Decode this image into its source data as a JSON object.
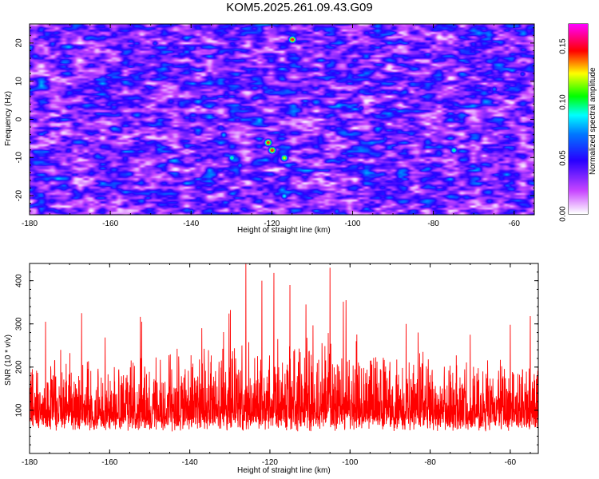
{
  "chart_data": [
    {
      "type": "heatmap",
      "title": "KOM5.2025.261.09.43.G09",
      "xlabel": "Height of straight line (km)",
      "ylabel": "Frequency (Hz)",
      "xlim": [
        -180,
        -55
      ],
      "ylim": [
        -25,
        25
      ],
      "x_ticks": [
        -180,
        -160,
        -140,
        -120,
        -100,
        -80,
        -60
      ],
      "y_ticks": [
        -20,
        -10,
        0,
        10,
        20
      ],
      "colorbar": {
        "label": "Normalized spectral amplitude",
        "range": [
          0.0,
          0.17
        ],
        "ticks": [
          "0.00",
          "0.05",
          "0.10",
          "0.15"
        ],
        "colors": [
          "#ffffff",
          "#cc44ff",
          "#0000ff",
          "#00ffff",
          "#00ff00",
          "#ffff00",
          "#ff0000",
          "#ff00ff"
        ]
      },
      "background_level": 0.02,
      "peaks": [
        {
          "x": -121,
          "y": -6,
          "value": 0.16
        },
        {
          "x": -120,
          "y": -8,
          "value": 0.16
        },
        {
          "x": -117,
          "y": -10,
          "value": 0.13
        },
        {
          "x": -115,
          "y": 21,
          "value": 0.16
        },
        {
          "x": -117,
          "y": -20,
          "value": 0.09
        },
        {
          "x": -130,
          "y": -10,
          "value": 0.1
        },
        {
          "x": -128,
          "y": -12,
          "value": 0.07
        },
        {
          "x": -132,
          "y": -4,
          "value": 0.08
        },
        {
          "x": -75,
          "y": -8,
          "value": 0.1
        },
        {
          "x": -149,
          "y": 20,
          "value": 0.06
        },
        {
          "x": -104,
          "y": -24,
          "value": 0.07
        },
        {
          "x": -98,
          "y": 3,
          "value": 0.06
        },
        {
          "x": -65,
          "y": 8,
          "value": 0.07
        },
        {
          "x": -58,
          "y": 12,
          "value": 0.06
        },
        {
          "x": -92,
          "y": -5,
          "value": 0.06
        },
        {
          "x": -140,
          "y": -24,
          "value": 0.07
        }
      ]
    },
    {
      "type": "line",
      "title": "",
      "xlabel": "Height of straight line (km)",
      "ylabel": "SNR (10 * v/v)",
      "xlim": [
        -180,
        -53
      ],
      "ylim": [
        0,
        440
      ],
      "x_ticks": [
        -180,
        -160,
        -140,
        -120,
        -100,
        -80,
        -60
      ],
      "y_ticks": [
        100,
        200,
        300,
        400
      ],
      "series_color": "#ff0000",
      "series_name": "SNR",
      "noise_floor": 50,
      "typical_range": [
        40,
        230
      ],
      "spikes": [
        {
          "x": -126,
          "y": 440
        },
        {
          "x": -105,
          "y": 430
        },
        {
          "x": -119,
          "y": 418
        },
        {
          "x": -122,
          "y": 400
        },
        {
          "x": -115,
          "y": 390
        },
        {
          "x": -101,
          "y": 355
        },
        {
          "x": -111,
          "y": 345
        },
        {
          "x": -167,
          "y": 325
        },
        {
          "x": -55,
          "y": 318
        },
        {
          "x": -176,
          "y": 305
        },
        {
          "x": -152,
          "y": 305
        },
        {
          "x": -86,
          "y": 300
        },
        {
          "x": -60,
          "y": 298
        },
        {
          "x": -137,
          "y": 290
        },
        {
          "x": -83,
          "y": 280
        },
        {
          "x": -70,
          "y": 275
        }
      ]
    }
  ]
}
